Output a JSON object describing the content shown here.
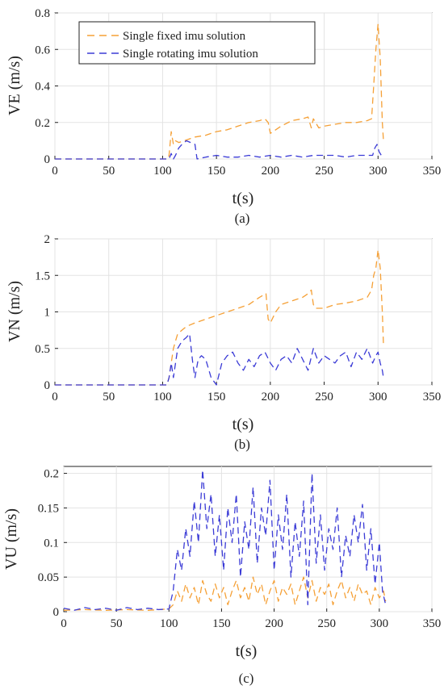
{
  "chart_data": [
    {
      "type": "line",
      "caption": "(a)",
      "xlabel": "t(s)",
      "ylabel": "VE (m/s)",
      "xlim": [
        0,
        350
      ],
      "ylim": [
        0,
        0.8
      ],
      "xticks": [
        "0",
        "50",
        "100",
        "150",
        "200",
        "250",
        "300",
        "350"
      ],
      "yticks": [
        "0",
        "0.2",
        "0.4",
        "0.6",
        "0.8"
      ],
      "grid": true,
      "legend_position": "top-left",
      "series": [
        {
          "name": "Single fixed imu solution",
          "color": "#f5a036",
          "x": [
            0,
            50,
            100,
            105,
            106,
            108,
            110,
            112,
            115,
            120,
            130,
            140,
            150,
            160,
            170,
            180,
            190,
            195,
            198,
            200,
            210,
            220,
            230,
            235,
            238,
            240,
            245,
            250,
            260,
            270,
            280,
            290,
            294,
            296,
            298,
            300,
            302,
            304,
            305
          ],
          "y": [
            0,
            0,
            0,
            0,
            0.02,
            0.15,
            0.08,
            0.1,
            0.09,
            0.1,
            0.12,
            0.13,
            0.15,
            0.16,
            0.18,
            0.2,
            0.21,
            0.22,
            0.2,
            0.14,
            0.18,
            0.21,
            0.22,
            0.23,
            0.17,
            0.22,
            0.17,
            0.18,
            0.19,
            0.2,
            0.2,
            0.21,
            0.22,
            0.4,
            0.6,
            0.74,
            0.55,
            0.2,
            0.1
          ]
        },
        {
          "name": "Single rotating imu solution",
          "color": "#3b3bd6",
          "x": [
            0,
            50,
            100,
            106,
            108,
            110,
            112,
            115,
            118,
            122,
            126,
            130,
            132,
            140,
            150,
            160,
            170,
            180,
            190,
            200,
            210,
            220,
            230,
            240,
            250,
            260,
            270,
            280,
            290,
            295,
            297,
            299,
            301,
            303,
            305
          ],
          "y": [
            0,
            0,
            0,
            0,
            0.03,
            0,
            0.02,
            0.06,
            0.08,
            0.1,
            0.09,
            0.08,
            0,
            0.01,
            0.02,
            0.01,
            0.01,
            0.02,
            0.01,
            0.02,
            0.01,
            0.02,
            0.01,
            0.02,
            0.02,
            0.02,
            0.01,
            0.02,
            0.02,
            0.02,
            0.06,
            0.08,
            0.04,
            0.02,
            0.01
          ]
        }
      ]
    },
    {
      "type": "line",
      "caption": "(b)",
      "xlabel": "t(s)",
      "ylabel": "VN (m/s)",
      "xlim": [
        0,
        350
      ],
      "ylim": [
        0,
        2
      ],
      "xticks": [
        "0",
        "50",
        "100",
        "150",
        "200",
        "250",
        "300",
        "350"
      ],
      "yticks": [
        "0",
        "0.5",
        "1",
        "1.5",
        "2"
      ],
      "grid": true,
      "series": [
        {
          "name": "Single fixed imu solution",
          "color": "#f5a036",
          "x": [
            0,
            50,
            100,
            104,
            106,
            108,
            110,
            112,
            114,
            118,
            122,
            130,
            140,
            150,
            160,
            170,
            180,
            190,
            196,
            198,
            200,
            205,
            210,
            220,
            230,
            235,
            238,
            240,
            242,
            250,
            260,
            270,
            280,
            290,
            294,
            296,
            298,
            300,
            302,
            304,
            305
          ],
          "y": [
            0,
            0,
            0,
            0,
            0.1,
            0.3,
            0.5,
            0.6,
            0.7,
            0.75,
            0.8,
            0.85,
            0.9,
            0.95,
            1.0,
            1.05,
            1.1,
            1.2,
            1.25,
            0.9,
            0.85,
            1.0,
            1.1,
            1.15,
            1.2,
            1.25,
            1.3,
            1.1,
            1.05,
            1.05,
            1.1,
            1.12,
            1.15,
            1.2,
            1.3,
            1.5,
            1.6,
            1.85,
            1.6,
            1.0,
            0.55
          ]
        },
        {
          "name": "Single rotating imu solution",
          "color": "#3b3bd6",
          "x": [
            0,
            50,
            100,
            104,
            106,
            108,
            110,
            114,
            118,
            122,
            125,
            128,
            130,
            133,
            136,
            140,
            145,
            150,
            155,
            160,
            165,
            170,
            175,
            180,
            185,
            190,
            195,
            200,
            205,
            210,
            215,
            220,
            225,
            230,
            235,
            240,
            245,
            250,
            255,
            260,
            265,
            270,
            275,
            280,
            285,
            290,
            295,
            298,
            300,
            302,
            304,
            305
          ],
          "y": [
            0,
            0,
            0,
            0,
            0.1,
            0.3,
            0.1,
            0.5,
            0.6,
            0.65,
            0.7,
            0.3,
            0.1,
            0.35,
            0.4,
            0.35,
            0.1,
            0,
            0.3,
            0.4,
            0.45,
            0.3,
            0.2,
            0.35,
            0.25,
            0.4,
            0.45,
            0.3,
            0.2,
            0.35,
            0.4,
            0.3,
            0.5,
            0.35,
            0.2,
            0.5,
            0.3,
            0.4,
            0.35,
            0.3,
            0.4,
            0.45,
            0.25,
            0.45,
            0.35,
            0.5,
            0.3,
            0.4,
            0.45,
            0.3,
            0.2,
            0.1
          ]
        }
      ]
    },
    {
      "type": "line",
      "caption": "(c)",
      "xlabel": "t(s)",
      "ylabel": "VU (m/s)",
      "xlim": [
        0,
        350
      ],
      "ylim": [
        0,
        0.21
      ],
      "xticks": [
        "0",
        "50",
        "100",
        "150",
        "200",
        "250",
        "300",
        "350"
      ],
      "yticks": [
        "0",
        "0.05",
        "0.1",
        "0.15",
        "0.2"
      ],
      "grid": true,
      "series": [
        {
          "name": "Single fixed imu solution",
          "color": "#f5a036",
          "x": [
            0,
            20,
            40,
            60,
            80,
            100,
            104,
            108,
            112,
            116,
            120,
            124,
            128,
            132,
            136,
            140,
            144,
            148,
            152,
            156,
            160,
            164,
            168,
            172,
            176,
            180,
            184,
            188,
            192,
            196,
            200,
            204,
            208,
            212,
            216,
            220,
            224,
            228,
            232,
            236,
            240,
            244,
            248,
            252,
            256,
            260,
            264,
            268,
            272,
            276,
            280,
            284,
            288,
            292,
            296,
            300,
            304,
            306
          ],
          "y": [
            0.002,
            0.003,
            0.002,
            0.003,
            0.002,
            0.004,
            0.01,
            0.03,
            0.015,
            0.04,
            0.02,
            0.035,
            0.01,
            0.045,
            0.025,
            0.015,
            0.04,
            0.02,
            0.035,
            0.01,
            0.03,
            0.045,
            0.02,
            0.035,
            0.015,
            0.05,
            0.025,
            0.04,
            0.01,
            0.03,
            0.045,
            0.015,
            0.035,
            0.025,
            0.04,
            0.01,
            0.03,
            0.05,
            0.02,
            0.045,
            0.015,
            0.035,
            0.025,
            0.04,
            0.01,
            0.03,
            0.045,
            0.02,
            0.035,
            0.015,
            0.04,
            0.025,
            0.03,
            0.01,
            0.035,
            0.02,
            0.03,
            0.015
          ]
        },
        {
          "name": "Single rotating imu solution",
          "color": "#3b3bd6",
          "x": [
            0,
            10,
            20,
            30,
            40,
            50,
            60,
            70,
            80,
            90,
            100,
            104,
            108,
            112,
            116,
            120,
            124,
            128,
            132,
            136,
            140,
            144,
            148,
            152,
            156,
            160,
            164,
            168,
            172,
            176,
            180,
            184,
            188,
            192,
            196,
            200,
            204,
            208,
            212,
            216,
            220,
            224,
            228,
            232,
            236,
            240,
            244,
            248,
            252,
            256,
            260,
            264,
            268,
            272,
            276,
            280,
            284,
            288,
            292,
            296,
            300,
            303,
            306
          ],
          "y": [
            0.005,
            0.002,
            0.006,
            0.003,
            0.005,
            0.002,
            0.006,
            0.003,
            0.005,
            0.003,
            0.004,
            0.03,
            0.09,
            0.06,
            0.12,
            0.08,
            0.16,
            0.1,
            0.205,
            0.12,
            0.17,
            0.08,
            0.14,
            0.06,
            0.15,
            0.1,
            0.17,
            0.05,
            0.13,
            0.09,
            0.18,
            0.07,
            0.15,
            0.11,
            0.19,
            0.06,
            0.14,
            0.09,
            0.17,
            0.05,
            0.13,
            0.08,
            0.16,
            0.01,
            0.2,
            0.07,
            0.14,
            0.06,
            0.12,
            0.09,
            0.15,
            0.05,
            0.11,
            0.08,
            0.14,
            0.1,
            0.155,
            0.06,
            0.12,
            0.04,
            0.1,
            0.03,
            0.01
          ]
        }
      ]
    }
  ]
}
